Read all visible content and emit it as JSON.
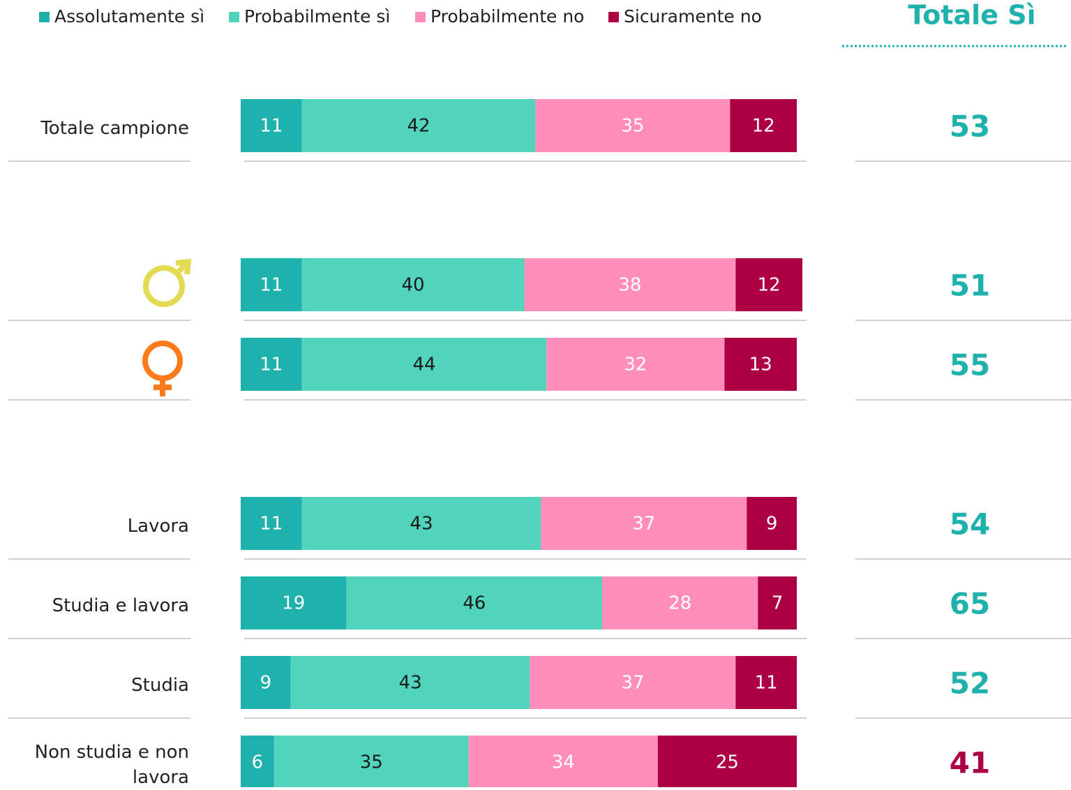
{
  "chart_data": {
    "type": "stacked-bar-horizontal",
    "categories": [
      "Totale campione",
      null,
      null,
      "Lavora",
      "Studia e lavora",
      "Studia",
      "Non studia e non lavora"
    ],
    "series": [
      {
        "name": "Assolutamente sì",
        "color": "#1fb1ac",
        "label_color": "#ffffff",
        "values": [
          11,
          11,
          11,
          11,
          19,
          9,
          6
        ]
      },
      {
        "name": "Probabilmente sì",
        "color": "#52d3bc",
        "label_color": "#1a1a1a",
        "values": [
          42,
          40,
          44,
          43,
          46,
          43,
          35
        ]
      },
      {
        "name": "Probabilmente no",
        "color": "#ff8fba",
        "label_color": "#ffffff",
        "values": [
          35,
          38,
          32,
          37,
          28,
          37,
          34
        ]
      },
      {
        "name": "Sicuramente no",
        "color": "#ad0044",
        "label_color": "#ffffff",
        "values": [
          12,
          12,
          13,
          9,
          7,
          11,
          25
        ]
      }
    ],
    "xlim": [
      0,
      100
    ],
    "totals": {
      "title": "Totale Sì",
      "values": [
        53,
        51,
        55,
        54,
        65,
        52,
        41
      ],
      "colors": [
        "#1fb1ac",
        "#1fb1ac",
        "#1fb1ac",
        "#1fb1ac",
        "#1fb1ac",
        "#1fb1ac",
        "#ad0044"
      ]
    }
  }
}
